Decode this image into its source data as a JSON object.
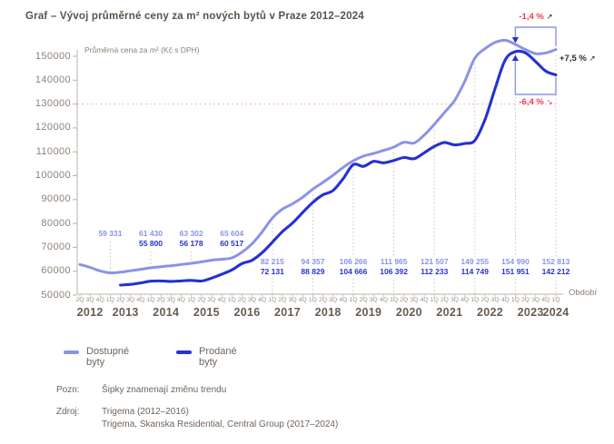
{
  "title": "Graf – Vývoj průměrné ceny za m² nových bytů v Praze 2012–2024",
  "axis_title": "Průměrná cena za m² (Kč s DPH)",
  "x_axis_label": "Období",
  "legend": [
    {
      "label": "Dostupné byty"
    },
    {
      "label": "Prodané byty"
    }
  ],
  "annotations": {
    "top": {
      "text": "-1,4 %",
      "arrow": "↗"
    },
    "bottom": {
      "text": "-6,4 %",
      "arrow": "↘"
    },
    "right": {
      "text": "+7,5 %",
      "arrow": "↗"
    }
  },
  "notes": {
    "pozn_label": "Pozn:",
    "pozn_text": "Šipky znamenají změnu trendu",
    "zdroj_label": "Zdroj:",
    "zdroj_line1": "Trigema (2012–2016)",
    "zdroj_line2": "Trigema, Skanska Residential, Central Group (2017–2024)"
  },
  "chart_data": {
    "type": "line",
    "title": "Graf – Vývoj průměrné ceny za m² nových bytů v Praze 2012–2024",
    "ylabel": "Průměrná cena za m² (Kč s DPH)",
    "xlabel": "Období",
    "ylim": [
      50000,
      150000
    ],
    "yticks": [
      50000,
      60000,
      70000,
      80000,
      90000,
      100000,
      110000,
      120000,
      130000,
      140000,
      150000
    ],
    "threshold_line": 130000,
    "grid": false,
    "legend_position": "bottom",
    "colors": {
      "available": "#8b93e6",
      "sold": "#2531d1",
      "threshold": "#f6bcc8",
      "red": "#ee3a52",
      "axis": "#b8b0a9",
      "dotted": "#c9c2bc"
    },
    "x_quarters": [
      "2Q",
      "3Q",
      "4Q",
      "1Q",
      "2Q",
      "3Q",
      "4Q",
      "1Q",
      "2Q",
      "3Q",
      "4Q",
      "1Q",
      "2Q",
      "3Q",
      "4Q",
      "1Q",
      "2Q",
      "3Q",
      "4Q",
      "1Q",
      "2Q",
      "3Q",
      "4Q",
      "1Q",
      "2Q",
      "3Q",
      "4Q",
      "1Q",
      "2Q",
      "3Q",
      "4Q",
      "1Q",
      "2Q",
      "3Q",
      "4Q",
      "1Q",
      "2Q",
      "3Q",
      "4Q",
      "1Q",
      "2Q",
      "3Q",
      "4Q",
      "1Q",
      "2Q",
      "3Q",
      "4Q",
      "1Q"
    ],
    "x_years": [
      {
        "label": "2012",
        "center_q": 1
      },
      {
        "label": "2013",
        "center_q": 4.5
      },
      {
        "label": "2014",
        "center_q": 8.5
      },
      {
        "label": "2015",
        "center_q": 12.5
      },
      {
        "label": "2016",
        "center_q": 16.5
      },
      {
        "label": "2017",
        "center_q": 20.5
      },
      {
        "label": "2018",
        "center_q": 24.5
      },
      {
        "label": "2019",
        "center_q": 28.5
      },
      {
        "label": "2020",
        "center_q": 32.5
      },
      {
        "label": "2021",
        "center_q": 36.5
      },
      {
        "label": "2022",
        "center_q": 40.5
      },
      {
        "label": "2023",
        "center_q": 44.5
      },
      {
        "label": "2024",
        "center_q": 47
      }
    ],
    "series": [
      {
        "name": "Dostupné byty",
        "key": "available",
        "values": [
          62800,
          61600,
          60100,
          59331,
          59600,
          60200,
          60800,
          61430,
          61900,
          62300,
          62800,
          63302,
          63900,
          64600,
          65000,
          65604,
          68000,
          71500,
          76500,
          82215,
          86000,
          88200,
          91000,
          94357,
          97200,
          100200,
          103500,
          106266,
          108200,
          109300,
          110600,
          111965,
          114000,
          113700,
          117000,
          121507,
          126500,
          131500,
          139500,
          149255,
          153200,
          155800,
          156700,
          154990,
          152800,
          151100,
          151400,
          152813
        ]
      },
      {
        "name": "Prodané byty",
        "key": "sold",
        "values": [
          null,
          null,
          null,
          null,
          54200,
          54500,
          55100,
          55800,
          55950,
          55750,
          55950,
          56178,
          55900,
          57100,
          58700,
          60517,
          63200,
          64600,
          67800,
          72131,
          76600,
          80200,
          84600,
          88829,
          92000,
          93800,
          98800,
          104666,
          103900,
          106000,
          105400,
          106392,
          107600,
          107100,
          109600,
          112233,
          113900,
          112900,
          113500,
          114749,
          123500,
          136500,
          148500,
          151951,
          151400,
          147800,
          143800,
          142212
        ]
      }
    ],
    "year_labels": [
      {
        "year": "2013",
        "q": 3,
        "available": "59 331",
        "sold": null
      },
      {
        "year": "2014",
        "q": 7,
        "available": "61 430",
        "sold": "55 800"
      },
      {
        "year": "2015",
        "q": 11,
        "available": "63 302",
        "sold": "56 178"
      },
      {
        "year": "2016",
        "q": 15,
        "available": "65 604",
        "sold": "60 517"
      },
      {
        "year": "2017",
        "q": 19,
        "available": "82 215",
        "sold": "72 131"
      },
      {
        "year": "2018",
        "q": 23,
        "available": "94 357",
        "sold": "88 829"
      },
      {
        "year": "2019",
        "q": 27,
        "available": "106 266",
        "sold": "104 666"
      },
      {
        "year": "2020",
        "q": 31,
        "available": "111 965",
        "sold": "106 392"
      },
      {
        "year": "2021",
        "q": 35,
        "available": "121 507",
        "sold": "112 233"
      },
      {
        "year": "2022",
        "q": 39,
        "available": "149 255",
        "sold": "114 749"
      },
      {
        "year": "2023",
        "q": 43,
        "available": "154 990",
        "sold": "151 951"
      },
      {
        "year": "2024",
        "q": 47,
        "available": "152 813",
        "sold": "142 212"
      }
    ]
  }
}
